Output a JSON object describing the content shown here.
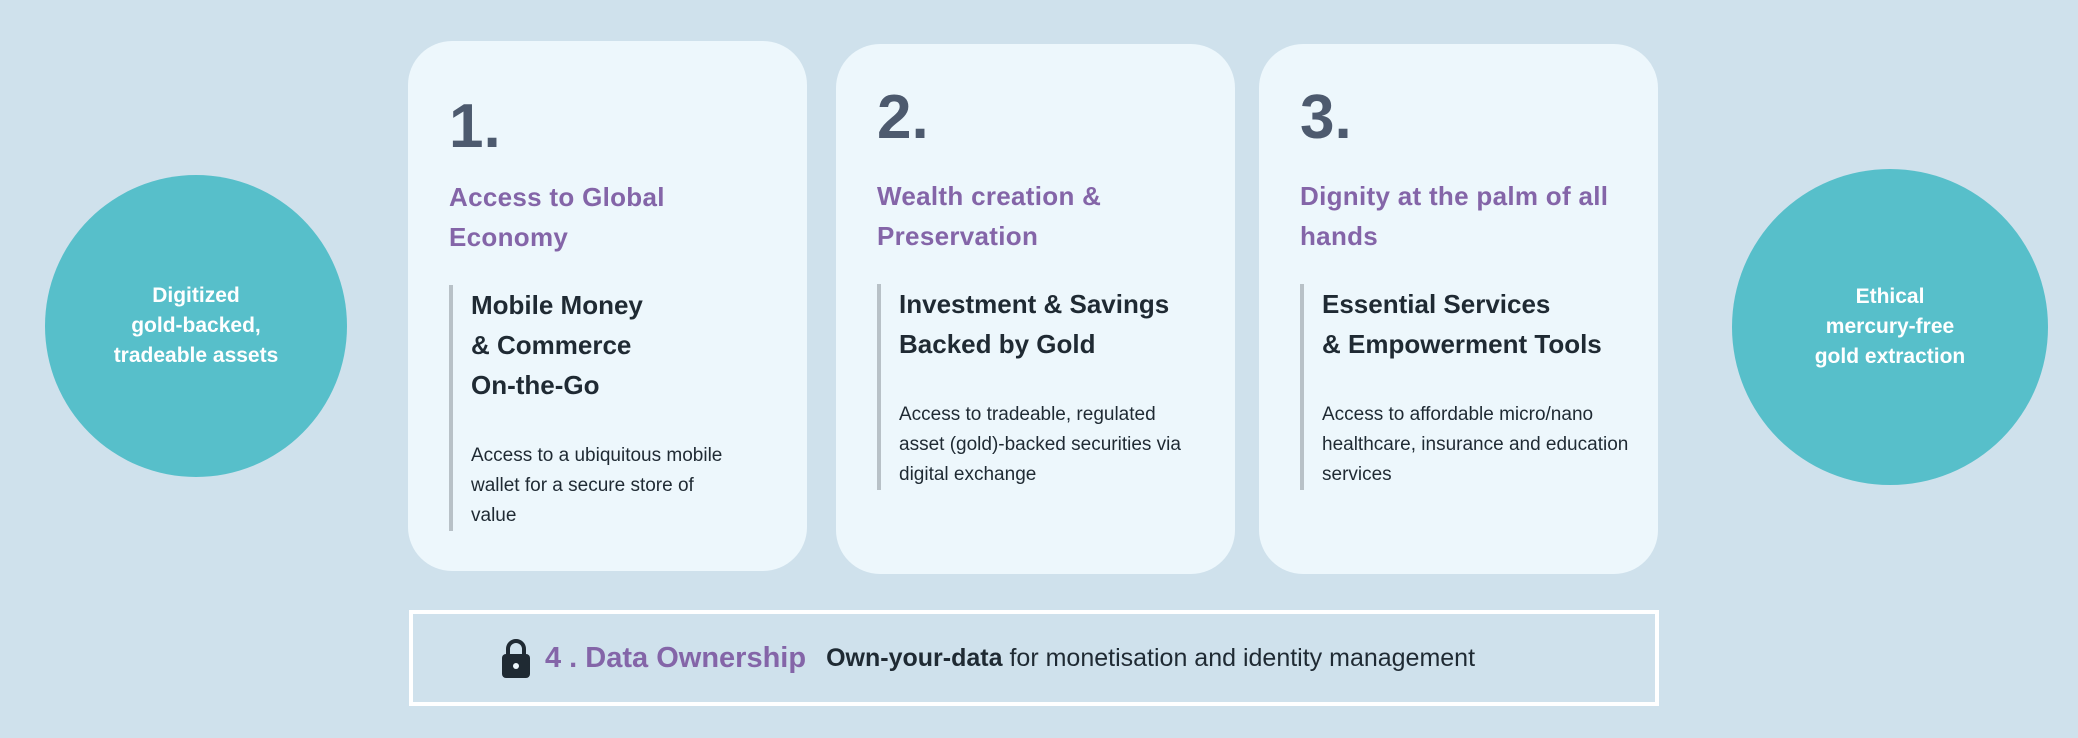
{
  "colors": {
    "background": "#cfe1ec",
    "card": "#edf7fc",
    "teal": "#57bfca",
    "purple": "#8465a8",
    "text": "#1f2a33",
    "number": "#4d5a6e"
  },
  "left_circle": {
    "lines": [
      "Digitized",
      "gold-backed,",
      "tradeable assets"
    ]
  },
  "right_circle": {
    "lines": [
      "Ethical",
      "mercury-free",
      "gold extraction"
    ]
  },
  "cards": [
    {
      "number": "1.",
      "pillar": "Access to Global Economy",
      "title_lines": [
        "Mobile Money",
        "& Commerce",
        "On-the-Go"
      ],
      "body": "Access to a ubiquitous mobile wallet for a secure store of value"
    },
    {
      "number": "2.",
      "pillar": "Wealth creation & Preservation",
      "title_lines": [
        "Investment & Savings",
        "Backed by Gold"
      ],
      "body": "Access to tradeable, regulated asset (gold)-backed securities via digital exchange"
    },
    {
      "number": "3.",
      "pillar": "Dignity at the palm of all hands",
      "title_lines": [
        "Essential Services",
        "& Empowerment Tools"
      ],
      "body": "Access to affordable micro/nano healthcare, insurance and education services"
    }
  ],
  "data_ownership": {
    "icon": "lock-icon",
    "title": "4 . Data Ownership",
    "bold": "Own-your-data",
    "text": "for monetisation and identity management"
  }
}
